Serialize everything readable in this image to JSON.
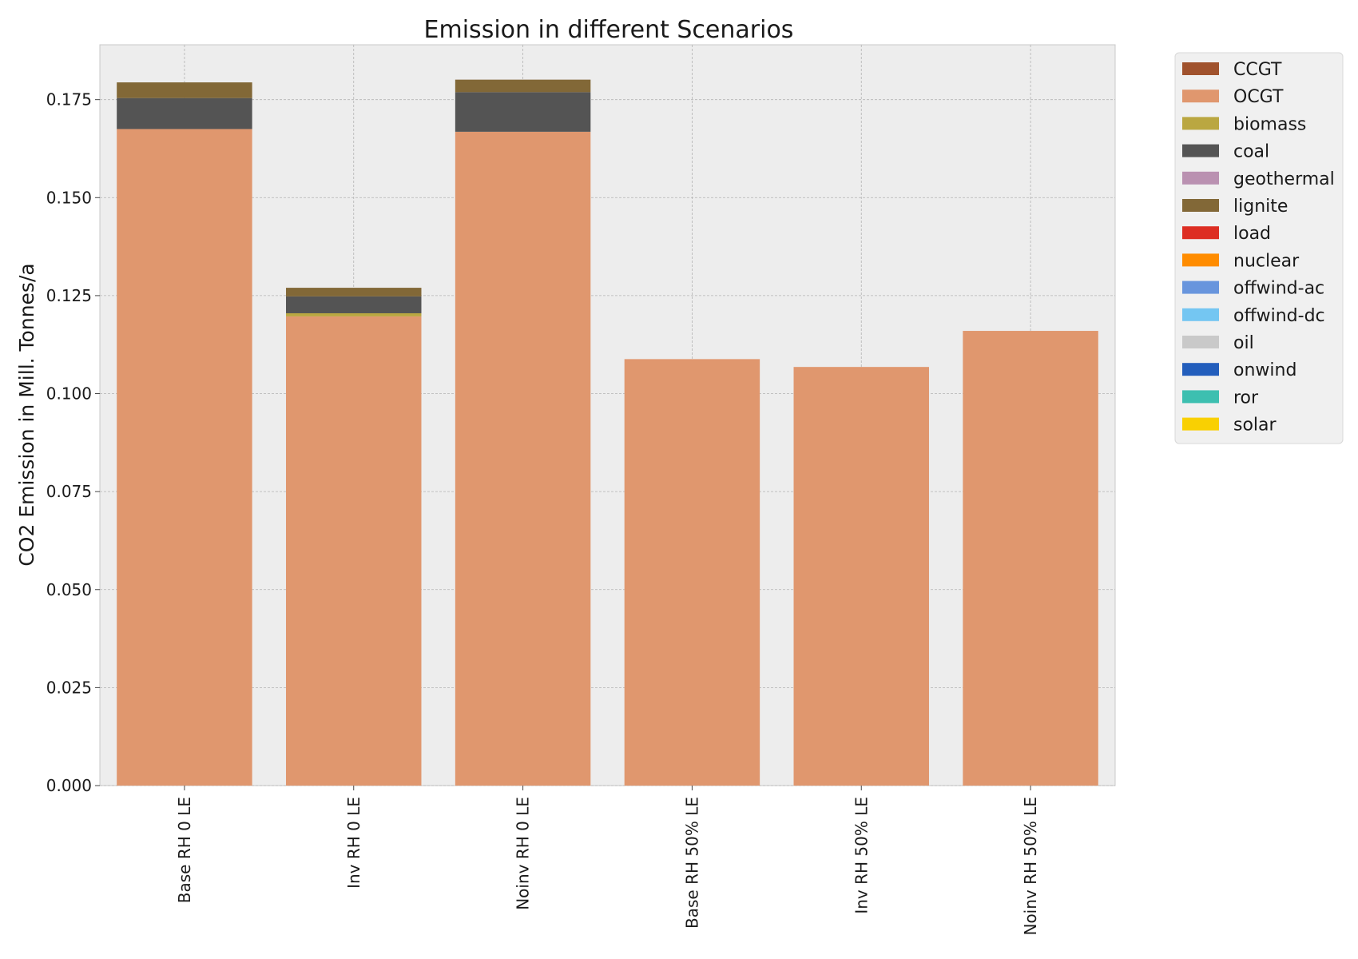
{
  "chart_data": {
    "type": "bar",
    "stacked": true,
    "title": "Emission in different Scenarios",
    "xlabel": "",
    "ylabel": "CO2 Emission in Mill. Tonnes/a",
    "ylim": [
      0,
      0.189
    ],
    "yticks": [
      "0.000",
      "0.025",
      "0.050",
      "0.075",
      "0.100",
      "0.125",
      "0.150",
      "0.175"
    ],
    "grid": true,
    "legend_position": "outside-right",
    "categories": [
      "Base RH 0 LE",
      "Inv RH 0 LE",
      "Noinv RH 0 LE",
      "Base RH 50% LE",
      "Inv RH 50% LE",
      "Noinv RH 50% LE"
    ],
    "series": [
      {
        "name": "CCGT",
        "color": "#a0522d",
        "values": [
          0,
          0,
          0,
          0,
          0,
          0
        ]
      },
      {
        "name": "OCGT",
        "color": "#e0976e",
        "values": [
          0.1675,
          0.1197,
          0.1668,
          0.1088,
          0.1068,
          0.116
        ]
      },
      {
        "name": "biomass",
        "color": "#baa741",
        "values": [
          0,
          0.0008,
          0,
          0,
          0,
          0
        ]
      },
      {
        "name": "coal",
        "color": "#545454",
        "values": [
          0.0079,
          0.0043,
          0.0101,
          0,
          0,
          0
        ]
      },
      {
        "name": "geothermal",
        "color": "#ba91b1",
        "values": [
          0,
          0,
          0,
          0,
          0,
          0
        ]
      },
      {
        "name": "lignite",
        "color": "#826837",
        "values": [
          0.004,
          0.0022,
          0.0032,
          0,
          0,
          0
        ]
      },
      {
        "name": "load",
        "color": "#dd2e23",
        "values": [
          0,
          0,
          0,
          0,
          0,
          0
        ]
      },
      {
        "name": "nuclear",
        "color": "#ff8c00",
        "values": [
          0,
          0,
          0,
          0,
          0,
          0
        ]
      },
      {
        "name": "offwind-ac",
        "color": "#6895dd",
        "values": [
          0,
          0,
          0,
          0,
          0,
          0
        ]
      },
      {
        "name": "offwind-dc",
        "color": "#74c6f2",
        "values": [
          0,
          0,
          0,
          0,
          0,
          0
        ]
      },
      {
        "name": "oil",
        "color": "#c9c9c9",
        "values": [
          0,
          0,
          0,
          0,
          0,
          0
        ]
      },
      {
        "name": "onwind",
        "color": "#235ebc",
        "values": [
          0,
          0,
          0,
          0,
          0,
          0
        ]
      },
      {
        "name": "ror",
        "color": "#3dbfb0",
        "values": [
          0,
          0,
          0,
          0,
          0,
          0
        ]
      },
      {
        "name": "solar",
        "color": "#f9d002",
        "values": [
          0,
          0,
          0,
          0,
          0,
          0
        ]
      }
    ]
  }
}
